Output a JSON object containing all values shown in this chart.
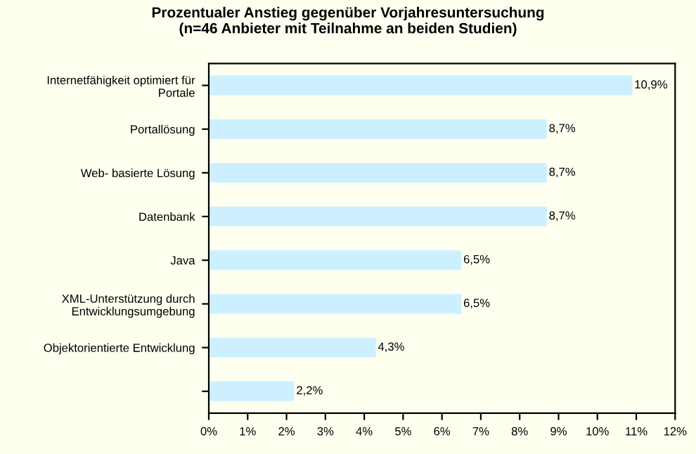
{
  "chart_data": {
    "type": "bar",
    "orientation": "horizontal",
    "title": "Prozentualer Anstieg gegenüber Vorjahresuntersuchung\n(n=46 Anbieter mit Teilnahme an beiden Studien)",
    "categories": [
      "Internetfähigkeit optimiert für\nPortale",
      "Portallösung",
      "Web- basierte Lösung",
      "Datenbank",
      "Java",
      "XML-Unterstützung durch\nEntwicklungsumgebung",
      "Objektorientierte Entwicklung",
      null
    ],
    "values": [
      10.9,
      8.7,
      8.7,
      8.7,
      6.5,
      6.5,
      4.3,
      2.2
    ],
    "value_labels": [
      "10,9%",
      "8,7%",
      "8,7%",
      "8,7%",
      "6,5%",
      "6,5%",
      "4,3%",
      "2,2%"
    ],
    "color": "#ccf0ff",
    "xlim": [
      0,
      12
    ],
    "xticks": [
      {
        "value": 0,
        "label": "0%"
      },
      {
        "value": 1,
        "label": "1%"
      },
      {
        "value": 2,
        "label": "2%"
      },
      {
        "value": 3,
        "label": "3%"
      },
      {
        "value": 4,
        "label": "4%"
      },
      {
        "value": 5,
        "label": "5%"
      },
      {
        "value": 6,
        "label": "6%"
      },
      {
        "value": 7,
        "label": "7%"
      },
      {
        "value": 8,
        "label": "8%"
      },
      {
        "value": 9,
        "label": "9%"
      },
      {
        "value": 10,
        "label": "10%"
      },
      {
        "value": 11,
        "label": "11%"
      },
      {
        "value": 12,
        "label": "12%"
      }
    ],
    "grid": false,
    "legend": false
  }
}
